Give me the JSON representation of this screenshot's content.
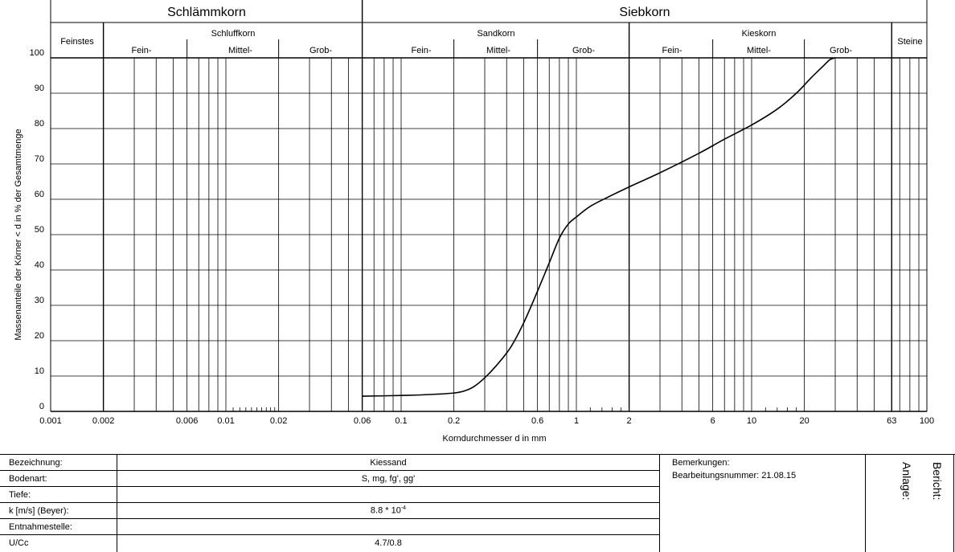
{
  "chart_data": {
    "type": "line",
    "x_scale": "log",
    "xlim": [
      0.001,
      100
    ],
    "ylim": [
      0,
      100
    ],
    "y_ticks": [
      0,
      10,
      20,
      30,
      40,
      50,
      60,
      70,
      80,
      90,
      100
    ],
    "x_tick_labels": [
      {
        "v": 0.001,
        "label": "0.001"
      },
      {
        "v": 0.002,
        "label": "0.002"
      },
      {
        "v": 0.006,
        "label": "0.006"
      },
      {
        "v": 0.01,
        "label": "0.01"
      },
      {
        "v": 0.02,
        "label": "0.02"
      },
      {
        "v": 0.06,
        "label": "0.06"
      },
      {
        "v": 0.1,
        "label": "0.1"
      },
      {
        "v": 0.2,
        "label": "0.2"
      },
      {
        "v": 0.6,
        "label": "0.6"
      },
      {
        "v": 1,
        "label": "1"
      },
      {
        "v": 2,
        "label": "2"
      },
      {
        "v": 6,
        "label": "6"
      },
      {
        "v": 10,
        "label": "10"
      },
      {
        "v": 20,
        "label": "20"
      },
      {
        "v": 63,
        "label": "63"
      },
      {
        "v": 100,
        "label": "100"
      }
    ],
    "xlabel": "Korndurchmesser d in mm",
    "ylabel": "Massenanteile der Körner < d in % der Gesamtmenge",
    "grid": true,
    "series": [
      {
        "x": [
          0.06,
          0.1,
          0.15,
          0.2,
          0.23,
          0.26,
          0.3,
          0.35,
          0.42,
          0.5,
          0.6,
          0.7,
          0.8,
          0.9,
          1.0,
          1.2,
          1.5,
          2.0,
          3.0,
          5.0,
          7.0,
          10.0,
          14.0,
          18.0,
          22.0,
          26.0,
          28.0,
          30.0
        ],
        "y": [
          4.3,
          4.5,
          4.8,
          5.2,
          5.8,
          7.0,
          9.5,
          13.0,
          18.0,
          25.0,
          34.0,
          42.0,
          49.0,
          53.0,
          55.0,
          58.0,
          60.5,
          63.5,
          67.5,
          73.0,
          77.0,
          81.0,
          85.5,
          90.0,
          94.5,
          98.0,
          99.5,
          100.0
        ]
      }
    ]
  },
  "header": {
    "schlaemmkorn": "Schlämmkorn",
    "siebkorn": "Siebkorn",
    "feinstes": "Feinstes",
    "schluffkorn": "Schluffkorn",
    "sandkorn": "Sandkorn",
    "kieskorn": "Kieskorn",
    "steine": "Steine",
    "fein": "Fein-",
    "mittel": "Mittel-",
    "grob": "Grob-"
  },
  "info": {
    "rows": [
      {
        "label": "Bezeichnung:",
        "value": "Kiessand"
      },
      {
        "label": "Bodenart:",
        "value": "S, mg, fg', gg'"
      },
      {
        "label": "Tiefe:",
        "value": ""
      },
      {
        "label": "k [m/s] (Beyer):",
        "value": "8.8 * 10",
        "exp": "-4"
      },
      {
        "label": "Entnahmestelle:",
        "value": ""
      },
      {
        "label": "U/Cc",
        "value": "4.7/0.8"
      }
    ],
    "bemerkungen_label": "Bemerkungen:",
    "bearbeitungsnummer": "Bearbeitungsnummer: 21.08.15",
    "anlage": "Anlage:",
    "bericht": "Bericht:"
  }
}
